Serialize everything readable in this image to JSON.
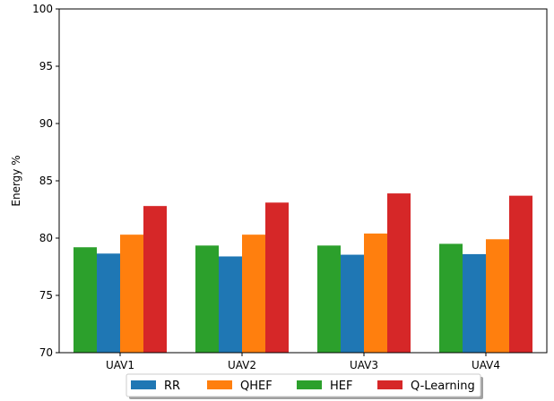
{
  "chart_data": {
    "type": "bar",
    "title": "",
    "xlabel": "",
    "ylabel": "Energy %",
    "ylim": [
      70,
      100
    ],
    "yticks": [
      70,
      75,
      80,
      85,
      90,
      95,
      100
    ],
    "categories": [
      "UAV1",
      "UAV2",
      "UAV3",
      "UAV4"
    ],
    "series": [
      {
        "name": "HEF",
        "color": "#2ca02c",
        "values": [
          79.2,
          79.35,
          79.35,
          79.5
        ]
      },
      {
        "name": "RR",
        "color": "#1f77b4",
        "values": [
          78.65,
          78.4,
          78.55,
          78.6
        ]
      },
      {
        "name": "QHEF",
        "color": "#ff7f0e",
        "values": [
          80.3,
          80.3,
          80.4,
          79.9
        ]
      },
      {
        "name": "Q-Learning",
        "color": "#d62728",
        "values": [
          82.8,
          83.1,
          83.9,
          83.7
        ]
      }
    ],
    "legend": {
      "placement": "bottom-center",
      "order": [
        "RR",
        "QHEF",
        "HEF",
        "Q-Learning"
      ]
    },
    "grid": false
  }
}
